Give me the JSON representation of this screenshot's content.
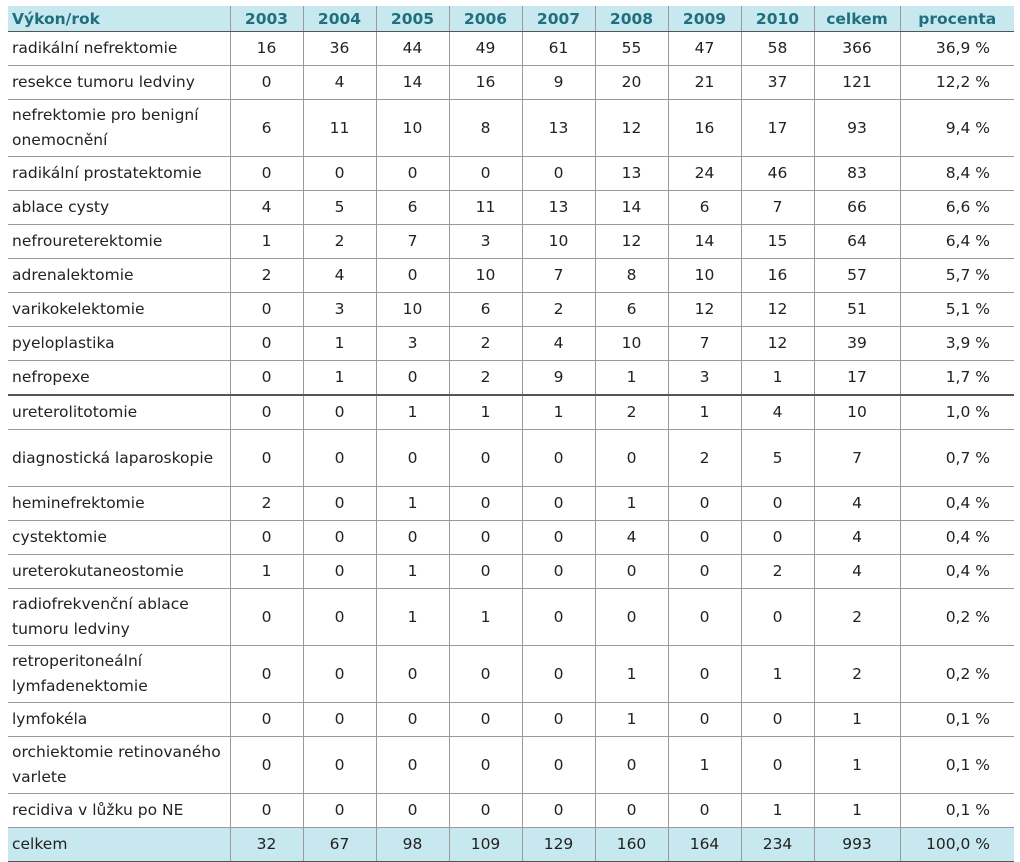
{
  "table": {
    "header": [
      "Výkon/rok",
      "2003",
      "2004",
      "2005",
      "2006",
      "2007",
      "2008",
      "2009",
      "2010",
      "celkem",
      "procenta"
    ],
    "rows": [
      {
        "label": "radikální nefrektomie",
        "values": [
          "16",
          "36",
          "44",
          "49",
          "61",
          "55",
          "47",
          "58",
          "366",
          "36,9 %"
        ]
      },
      {
        "label": "resekce tumoru ledviny",
        "values": [
          "0",
          "4",
          "14",
          "16",
          "9",
          "20",
          "21",
          "37",
          "121",
          "12,2 %"
        ]
      },
      {
        "label": "nefrektomie pro benigní onemocnění",
        "values": [
          "6",
          "11",
          "10",
          "8",
          "13",
          "12",
          "16",
          "17",
          "93",
          "9,4 %"
        ]
      },
      {
        "label": "radikální prostatektomie",
        "values": [
          "0",
          "0",
          "0",
          "0",
          "0",
          "13",
          "24",
          "46",
          "83",
          "8,4 %"
        ]
      },
      {
        "label": "ablace cysty",
        "values": [
          "4",
          "5",
          "6",
          "11",
          "13",
          "14",
          "6",
          "7",
          "66",
          "6,6 %"
        ]
      },
      {
        "label": "nefroureterektomie",
        "values": [
          "1",
          "2",
          "7",
          "3",
          "10",
          "12",
          "14",
          "15",
          "64",
          "6,4 %"
        ]
      },
      {
        "label": "adrenalektomie",
        "values": [
          "2",
          "4",
          "0",
          "10",
          "7",
          "8",
          "10",
          "16",
          "57",
          "5,7 %"
        ]
      },
      {
        "label": "varikokelektomie",
        "values": [
          "0",
          "3",
          "10",
          "6",
          "2",
          "6",
          "12",
          "12",
          "51",
          "5,1 %"
        ]
      },
      {
        "label": "pyeloplastika",
        "values": [
          "0",
          "1",
          "3",
          "2",
          "4",
          "10",
          "7",
          "12",
          "39",
          "3,9 %"
        ]
      },
      {
        "label": "nefropexe",
        "values": [
          "0",
          "1",
          "0",
          "2",
          "9",
          "1",
          "3",
          "1",
          "17",
          "1,7 %"
        ]
      },
      {
        "label": "ureterolitotomie",
        "values": [
          "0",
          "0",
          "1",
          "1",
          "1",
          "2",
          "1",
          "4",
          "10",
          "1,0 %"
        ]
      },
      {
        "label": "diagnostická laparoskopie",
        "values": [
          "0",
          "0",
          "0",
          "0",
          "0",
          "0",
          "2",
          "5",
          "7",
          "0,7 %"
        ]
      },
      {
        "label": "heminefrektomie",
        "values": [
          "2",
          "0",
          "1",
          "0",
          "0",
          "1",
          "0",
          "0",
          "4",
          "0,4 %"
        ]
      },
      {
        "label": "cystektomie",
        "values": [
          "0",
          "0",
          "0",
          "0",
          "0",
          "4",
          "0",
          "0",
          "4",
          "0,4 %"
        ]
      },
      {
        "label": "ureterokutaneostomie",
        "values": [
          "1",
          "0",
          "1",
          "0",
          "0",
          "0",
          "0",
          "2",
          "4",
          "0,4 %"
        ]
      },
      {
        "label": "radiofrekvenční ablace tumoru ledviny",
        "values": [
          "0",
          "0",
          "1",
          "1",
          "0",
          "0",
          "0",
          "0",
          "2",
          "0,2 %"
        ]
      },
      {
        "label": "retroperitoneální lymfadenektomie",
        "values": [
          "0",
          "0",
          "0",
          "0",
          "0",
          "1",
          "0",
          "1",
          "2",
          "0,2 %"
        ]
      },
      {
        "label": "lymfokéla",
        "values": [
          "0",
          "0",
          "0",
          "0",
          "0",
          "1",
          "0",
          "0",
          "1",
          "0,1 %"
        ]
      },
      {
        "label": "orchiektomie retinovaného varlete",
        "values": [
          "0",
          "0",
          "0",
          "0",
          "0",
          "0",
          "1",
          "0",
          "1",
          "0,1 %"
        ]
      },
      {
        "label": "recidiva v lůžku po NE",
        "values": [
          "0",
          "0",
          "0",
          "0",
          "0",
          "0",
          "0",
          "1",
          "1",
          "0,1 %"
        ]
      }
    ],
    "total": {
      "label": "celkem",
      "values": [
        "32",
        "67",
        "98",
        "109",
        "129",
        "160",
        "164",
        "234",
        "993",
        "100,0 %"
      ]
    }
  }
}
